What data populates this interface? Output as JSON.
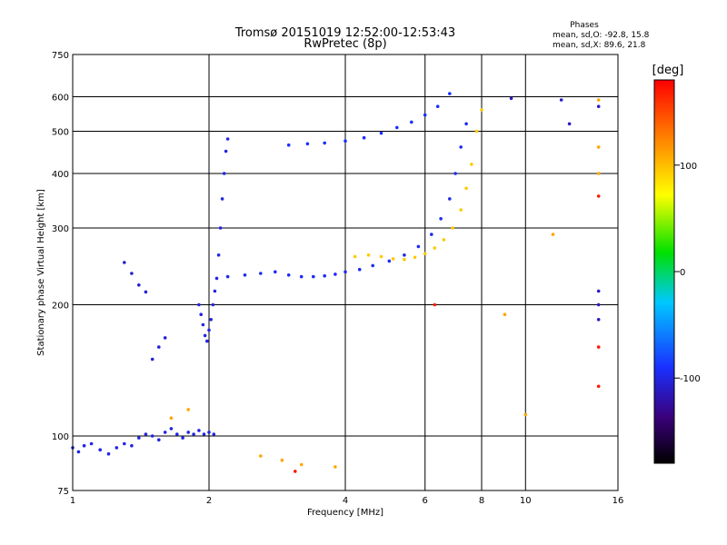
{
  "chart_data": {
    "type": "scatter",
    "title": "Tromsø 20151019 12:52:00-12:53:43",
    "subtitle": "RwPretec (8p)",
    "xlabel": "Frequency [MHz]",
    "ylabel": "Stationary phase Virtual Height [km]",
    "x_scale": "log",
    "y_scale": "log",
    "xlim": [
      1,
      16
    ],
    "ylim": [
      75,
      750
    ],
    "x_ticks": [
      1,
      2,
      4,
      6,
      8,
      10,
      16
    ],
    "y_ticks": [
      75,
      100,
      200,
      300,
      400,
      500,
      600,
      750
    ],
    "grid": true,
    "stats_title": "Phases",
    "stats_lines": [
      "mean, sd,O: -92.8, 15.8",
      "mean, sd,X:  89.6, 21.8"
    ],
    "colorbar": {
      "label": "[deg]",
      "ticks": [
        "100",
        "0",
        "-100"
      ],
      "tick_values": [
        100,
        0,
        -100
      ],
      "range": [
        -180,
        180
      ]
    },
    "traces": [
      {
        "note_type": "O-mode low band",
        "phase": -100,
        "points": [
          [
            1.0,
            94
          ],
          [
            1.03,
            92
          ],
          [
            1.06,
            95
          ],
          [
            1.1,
            96
          ],
          [
            1.15,
            93
          ],
          [
            1.2,
            91
          ],
          [
            1.25,
            94
          ],
          [
            1.3,
            96
          ],
          [
            1.35,
            95
          ],
          [
            1.4,
            99
          ],
          [
            1.45,
            101
          ],
          [
            1.5,
            100
          ],
          [
            1.55,
            98
          ],
          [
            1.6,
            102
          ],
          [
            1.65,
            104
          ],
          [
            1.7,
            101
          ],
          [
            1.75,
            99
          ],
          [
            1.8,
            102
          ],
          [
            1.85,
            101
          ],
          [
            1.9,
            103
          ],
          [
            1.95,
            101
          ],
          [
            2.0,
            102
          ],
          [
            2.05,
            101
          ]
        ]
      },
      {
        "note_type": "O-mode E layer",
        "phase": -100,
        "points": [
          [
            1.9,
            200
          ],
          [
            1.92,
            190
          ],
          [
            1.94,
            180
          ],
          [
            1.96,
            170
          ],
          [
            1.98,
            165
          ],
          [
            2.0,
            175
          ],
          [
            2.02,
            185
          ],
          [
            2.04,
            200
          ],
          [
            2.06,
            215
          ],
          [
            2.08,
            230
          ],
          [
            2.1,
            260
          ],
          [
            2.12,
            300
          ],
          [
            2.14,
            350
          ],
          [
            2.16,
            400
          ],
          [
            2.18,
            450
          ],
          [
            2.2,
            480
          ]
        ]
      },
      {
        "note_type": "O-mode F trace",
        "phase": -95,
        "points": [
          [
            2.2,
            232
          ],
          [
            2.4,
            234
          ],
          [
            2.6,
            236
          ],
          [
            2.8,
            238
          ],
          [
            3.0,
            234
          ],
          [
            3.2,
            232
          ],
          [
            3.4,
            232
          ],
          [
            3.6,
            233
          ],
          [
            3.8,
            235
          ],
          [
            4.0,
            238
          ],
          [
            4.3,
            241
          ],
          [
            4.6,
            246
          ],
          [
            5.0,
            252
          ],
          [
            5.4,
            260
          ],
          [
            5.8,
            272
          ],
          [
            6.2,
            290
          ],
          [
            6.5,
            315
          ],
          [
            6.8,
            350
          ],
          [
            7.0,
            400
          ],
          [
            7.2,
            460
          ],
          [
            7.4,
            520
          ]
        ]
      },
      {
        "note_type": "X-mode F trace",
        "phase": 95,
        "points": [
          [
            4.2,
            258
          ],
          [
            4.5,
            260
          ],
          [
            4.8,
            258
          ],
          [
            5.1,
            255
          ],
          [
            5.4,
            254
          ],
          [
            5.7,
            257
          ],
          [
            6.0,
            262
          ],
          [
            6.3,
            270
          ],
          [
            6.6,
            282
          ],
          [
            6.9,
            300
          ],
          [
            7.2,
            330
          ],
          [
            7.4,
            370
          ],
          [
            7.6,
            420
          ],
          [
            7.8,
            500
          ],
          [
            8.0,
            560
          ]
        ]
      },
      {
        "note_type": "O-mode upper echo",
        "phase": -90,
        "points": [
          [
            3.0,
            465
          ],
          [
            3.3,
            468
          ],
          [
            3.6,
            470
          ],
          [
            4.0,
            475
          ],
          [
            4.4,
            483
          ],
          [
            4.8,
            495
          ],
          [
            5.2,
            510
          ],
          [
            5.6,
            525
          ],
          [
            6.0,
            545
          ],
          [
            6.4,
            570
          ],
          [
            6.8,
            610
          ]
        ]
      },
      {
        "note_type": "O-mode isolated",
        "phase": -105,
        "points": [
          [
            1.3,
            250
          ],
          [
            1.35,
            236
          ],
          [
            1.4,
            222
          ],
          [
            1.45,
            214
          ],
          [
            1.5,
            150
          ],
          [
            1.55,
            160
          ],
          [
            1.6,
            168
          ]
        ]
      },
      {
        "note_type": "X-mode isolated",
        "phase": 110,
        "points": [
          [
            1.65,
            110
          ],
          [
            1.8,
            115
          ],
          [
            2.6,
            90
          ],
          [
            2.9,
            88
          ],
          [
            3.2,
            86
          ],
          [
            3.8,
            85
          ],
          [
            10.0,
            112
          ],
          [
            11.5,
            290
          ],
          [
            14.5,
            400
          ],
          [
            14.5,
            460
          ],
          [
            14.5,
            590
          ],
          [
            9.0,
            190
          ]
        ]
      },
      {
        "note_type": "O-mode isolated high",
        "phase": -110,
        "points": [
          [
            12.0,
            590
          ],
          [
            12.5,
            520
          ],
          [
            14.5,
            570
          ],
          [
            14.5,
            215
          ],
          [
            14.5,
            200
          ],
          [
            14.5,
            185
          ],
          [
            9.3,
            595
          ]
        ]
      },
      {
        "note_type": "red/magenta isolated",
        "phase": 170,
        "points": [
          [
            14.5,
            355
          ],
          [
            14.5,
            160
          ],
          [
            14.5,
            130
          ],
          [
            6.3,
            200
          ],
          [
            3.1,
            83
          ]
        ]
      }
    ]
  }
}
